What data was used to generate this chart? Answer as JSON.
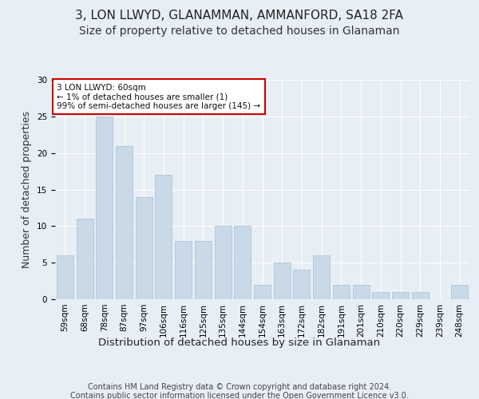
{
  "title": "3, LON LLWYD, GLANAMMAN, AMMANFORD, SA18 2FA",
  "subtitle": "Size of property relative to detached houses in Glanaman",
  "xlabel": "Distribution of detached houses by size in Glanaman",
  "ylabel": "Number of detached properties",
  "categories": [
    "59sqm",
    "68sqm",
    "78sqm",
    "87sqm",
    "97sqm",
    "106sqm",
    "116sqm",
    "125sqm",
    "135sqm",
    "144sqm",
    "154sqm",
    "163sqm",
    "172sqm",
    "182sqm",
    "191sqm",
    "201sqm",
    "210sqm",
    "220sqm",
    "229sqm",
    "239sqm",
    "248sqm"
  ],
  "values": [
    6,
    11,
    25,
    21,
    14,
    17,
    8,
    8,
    10,
    10,
    2,
    5,
    4,
    6,
    2,
    2,
    1,
    1,
    1,
    0,
    2
  ],
  "bar_color": "#c9d9e8",
  "bar_edge_color": "#a8c0d0",
  "annotation_box_text": "3 LON LLWYD: 60sqm\n← 1% of detached houses are smaller (1)\n99% of semi-detached houses are larger (145) →",
  "annotation_box_color": "#ffffff",
  "annotation_box_edge_color": "#cc0000",
  "footer_line1": "Contains HM Land Registry data © Crown copyright and database right 2024.",
  "footer_line2": "Contains public sector information licensed under the Open Government Licence v3.0.",
  "ylim": [
    0,
    30
  ],
  "yticks": [
    0,
    5,
    10,
    15,
    20,
    25,
    30
  ],
  "background_color": "#e8eef5",
  "grid_color": "#ffffff",
  "title_fontsize": 11,
  "subtitle_fontsize": 10,
  "ylabel_fontsize": 9,
  "xlabel_fontsize": 9.5,
  "tick_fontsize": 7.5,
  "annotation_fontsize": 7.5,
  "footer_fontsize": 7
}
